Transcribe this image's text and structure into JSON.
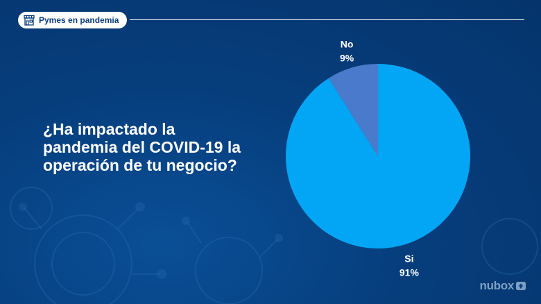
{
  "header": {
    "tag_label": "Pymes en pandemia"
  },
  "question": "¿Ha impactado la pandemia del COVID-19 la operación de tu negocio?",
  "brand": {
    "name": "nubox"
  },
  "colors": {
    "background": "#063e7d",
    "si": "#02a6f4",
    "no": "#4a7acb",
    "text": "#ffffff"
  },
  "chart_data": {
    "type": "pie",
    "title": "",
    "slices": [
      {
        "label": "No",
        "value": 9,
        "display": "9%",
        "color": "#4a7acb"
      },
      {
        "label": "Si",
        "value": 91,
        "display": "91%",
        "color": "#02a6f4"
      }
    ]
  }
}
